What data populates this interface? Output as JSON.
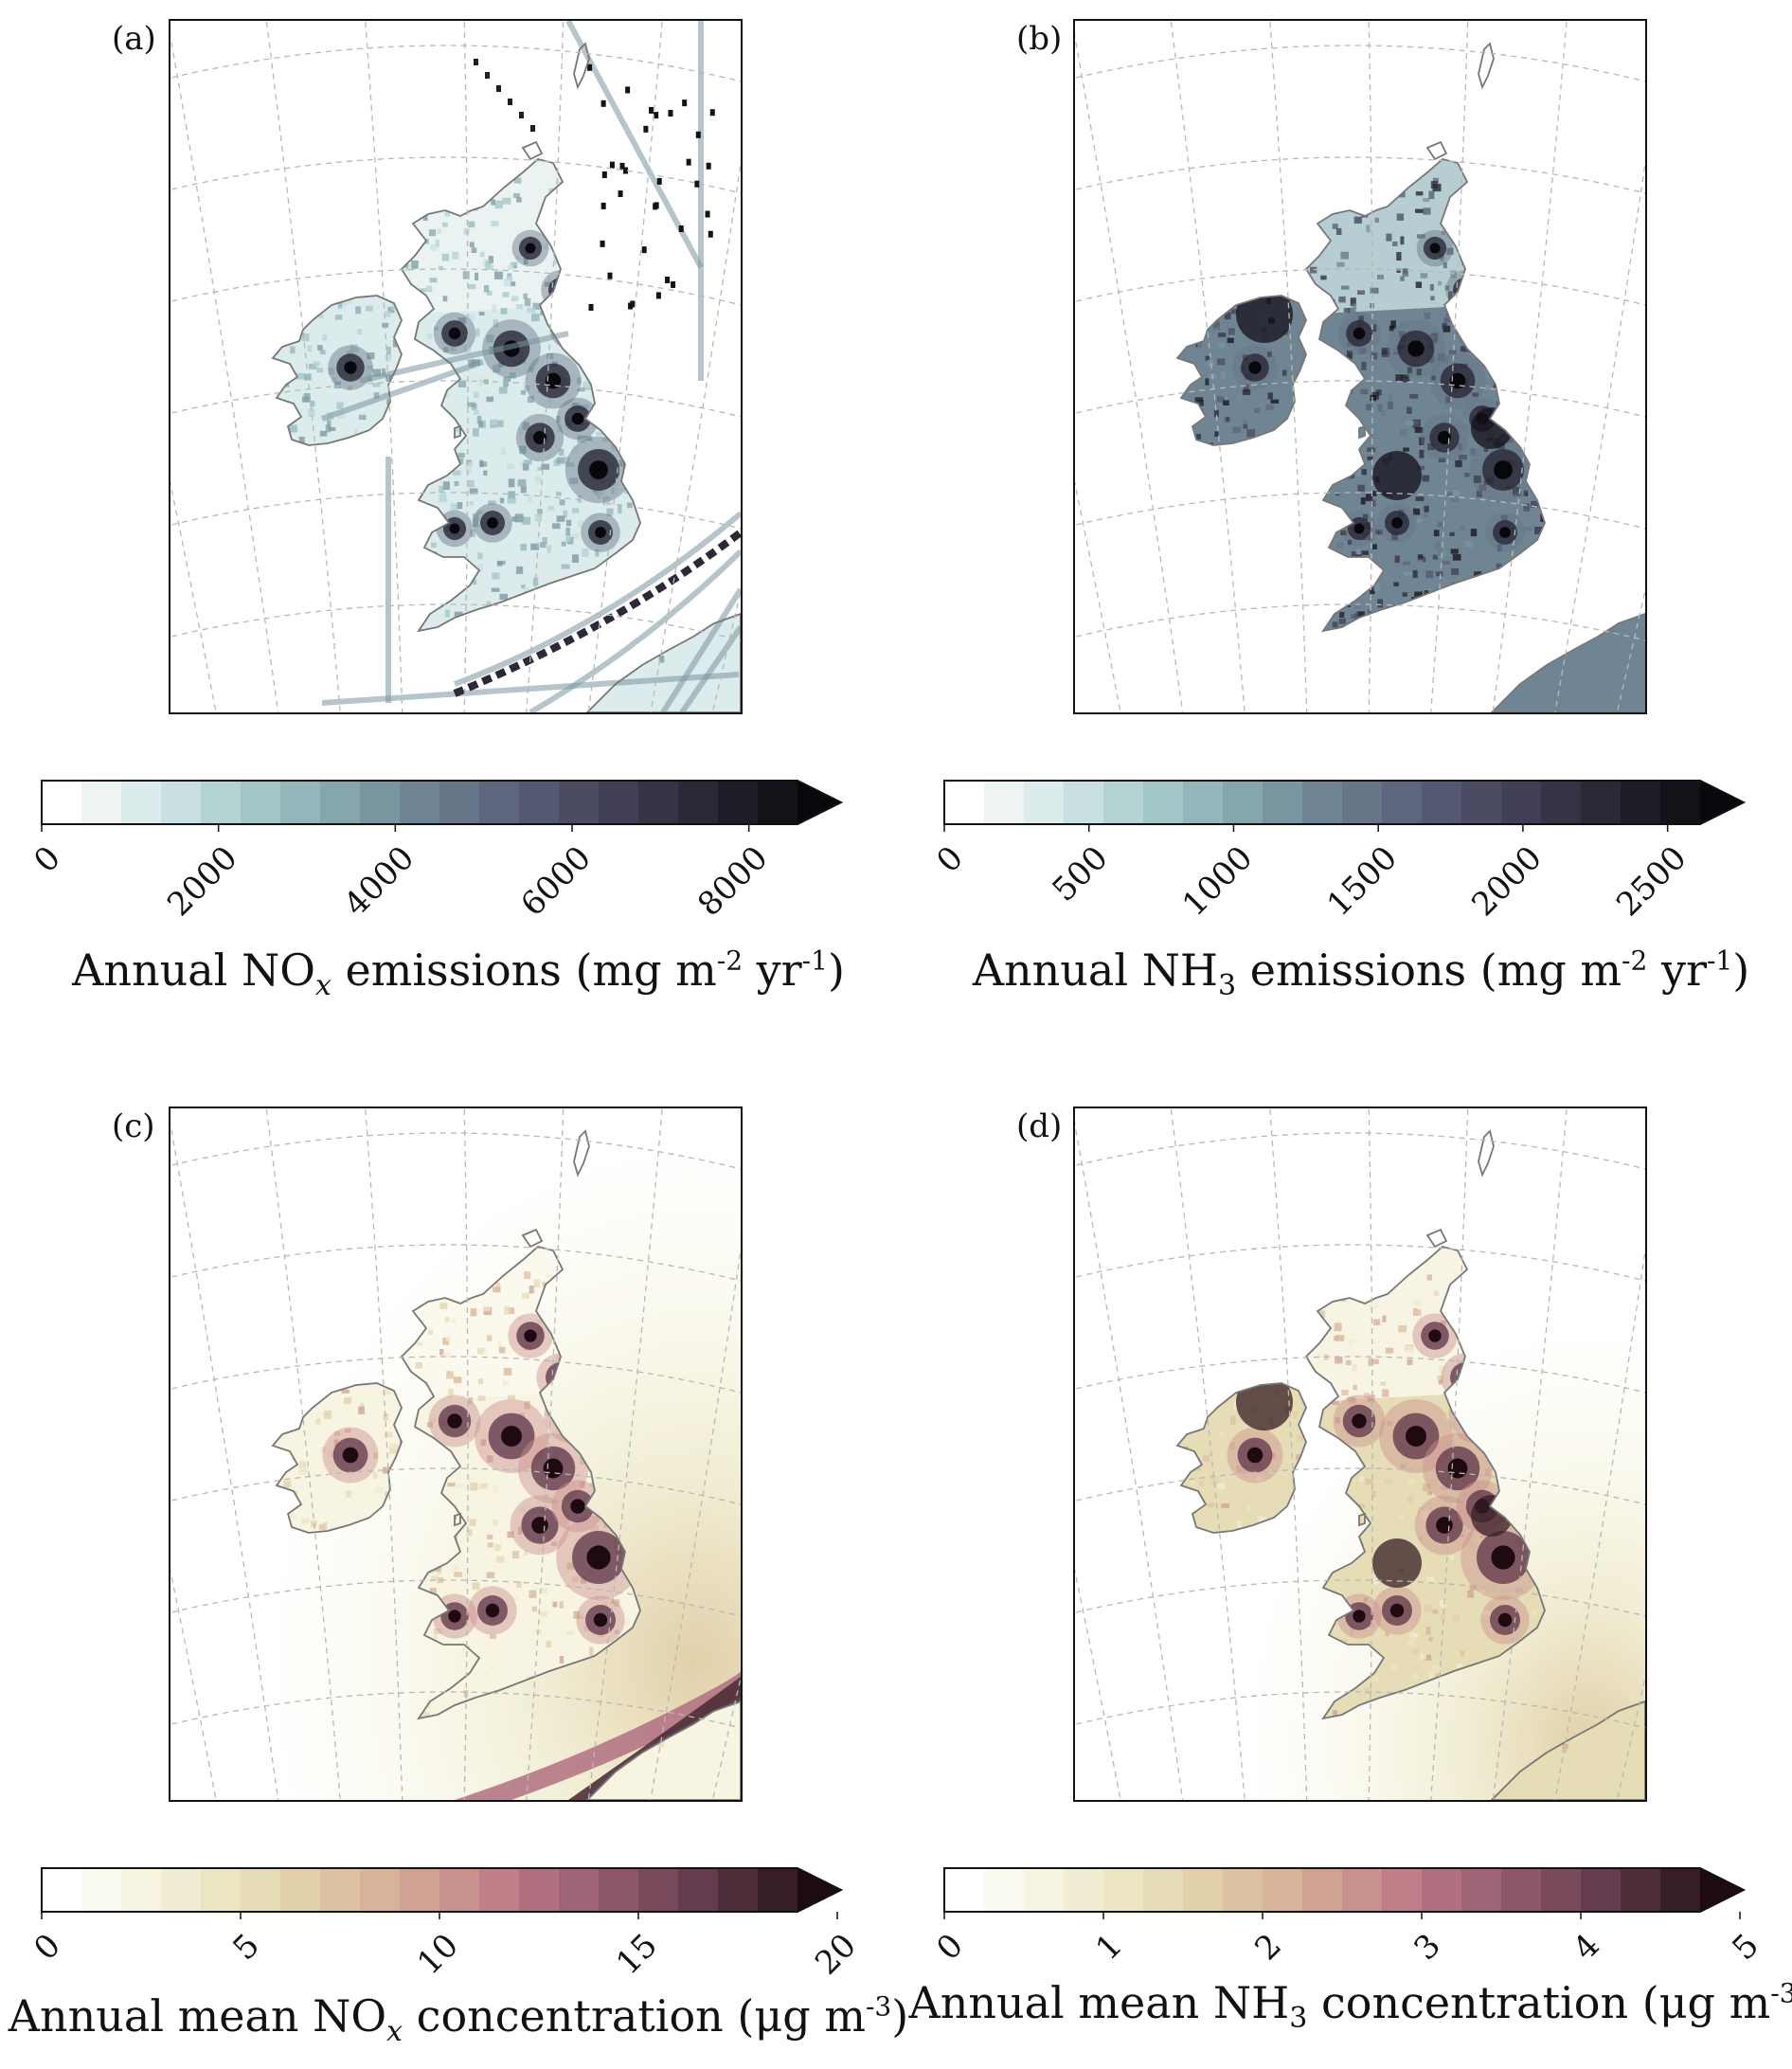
{
  "panels": [
    {
      "id": "a",
      "label": "(a)",
      "kind": "emissions",
      "palette": "bone",
      "colorbar": {
        "ticks": [
          "0",
          "2000",
          "4000",
          "6000",
          "8000"
        ],
        "tick_values": [
          0,
          2000,
          4000,
          6000,
          8000
        ],
        "min": 0,
        "max": 9000,
        "levels": 20,
        "title_prefix": "Annual NO",
        "title_sub": "x",
        "title_sub_italic": true,
        "title_mid": " emissions (mg m",
        "title_sup1": "-2",
        "title_mid2": " yr",
        "title_sup2": "-1",
        "title_suffix": ")"
      }
    },
    {
      "id": "b",
      "label": "(b)",
      "kind": "emissions",
      "palette": "bone",
      "colorbar": {
        "ticks": [
          "0",
          "500",
          "1000",
          "1500",
          "2000",
          "2500"
        ],
        "tick_values": [
          0,
          500,
          1000,
          1500,
          2000,
          2500
        ],
        "min": 0,
        "max": 2750,
        "levels": 20,
        "title_prefix": "Annual NH",
        "title_sub": "3",
        "title_sub_italic": false,
        "title_mid": " emissions (mg m",
        "title_sup1": "-2",
        "title_mid2": " yr",
        "title_sup2": "-1",
        "title_suffix": ")"
      }
    },
    {
      "id": "c",
      "label": "(c)",
      "kind": "concentration",
      "palette": "pink",
      "colorbar": {
        "ticks": [
          "0",
          "5",
          "10",
          "15",
          "20"
        ],
        "tick_values": [
          0,
          5,
          10,
          15,
          20
        ],
        "min": 0,
        "max": 20,
        "levels": 20,
        "title_prefix": "Annual mean NO",
        "title_sub": "x",
        "title_sub_italic": true,
        "title_mid": " concentration (μg m",
        "title_sup1": "-3",
        "title_mid2": "",
        "title_sup2": "",
        "title_suffix": ")"
      }
    },
    {
      "id": "d",
      "label": "(d)",
      "kind": "concentration",
      "palette": "pink",
      "colorbar": {
        "ticks": [
          "0",
          "1",
          "2",
          "3",
          "4",
          "5"
        ],
        "tick_values": [
          0,
          1,
          2,
          3,
          4,
          5
        ],
        "min": 0,
        "max": 5,
        "levels": 20,
        "title_prefix": "Annual mean NH",
        "title_sub": "3",
        "title_sub_italic": false,
        "title_mid": " concentration (μg m",
        "title_sup1": "-3",
        "title_mid2": "",
        "title_sup2": "",
        "title_suffix": ")"
      }
    }
  ],
  "colors": {
    "bone": [
      "#ffffff",
      "#eef4f4",
      "#dcebeb",
      "#c8e0e0",
      "#b4d3d3",
      "#a1c6c6",
      "#92b7ba",
      "#85a6ad",
      "#7995a0",
      "#6f8594",
      "#667588",
      "#5d667d",
      "#545872",
      "#4b4b64",
      "#413f55",
      "#373346",
      "#2b2837",
      "#1f1c28",
      "#141219",
      "#08070b"
    ],
    "pink": [
      "#ffffff",
      "#fbfaf0",
      "#f7f4e2",
      "#f1edd3",
      "#ebe5c2",
      "#e6dcb5",
      "#e2d0aa",
      "#ddc2a1",
      "#d7b39a",
      "#d0a294",
      "#c9918e",
      "#c07f88",
      "#b07080",
      "#9e6375",
      "#8b5769",
      "#784a5c",
      "#643c4d",
      "#4e2d3a",
      "#371d26",
      "#1e0b12"
    ],
    "land_outline": "#777777",
    "grid": "#b8b8b8"
  }
}
